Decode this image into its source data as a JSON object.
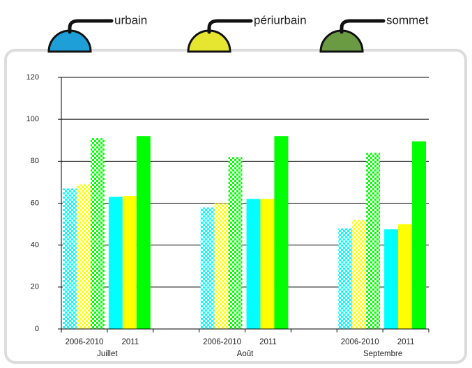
{
  "chart_data": {
    "type": "bar",
    "groups": [
      "Juillet",
      "Août",
      "Septembre"
    ],
    "categories": [
      "2006-2010",
      "2011",
      "2006-2010",
      "2011",
      "2006-2010",
      "2011"
    ],
    "category_pattern": [
      "checkered",
      "solid",
      "checkered",
      "solid",
      "checkered",
      "solid"
    ],
    "series": [
      {
        "name": "urbain",
        "color": "#00ffff",
        "legend_color": "#1e9fd8",
        "values": [
          67,
          63,
          58,
          62,
          48,
          47.5
        ]
      },
      {
        "name": "périurbain",
        "color": "#ffff00",
        "legend_color": "#e6e630",
        "values": [
          69,
          63.5,
          60,
          62,
          52,
          50
        ]
      },
      {
        "name": "sommet",
        "color": "#00ff00",
        "legend_color": "#6a9a42",
        "values": [
          91,
          92,
          82,
          92,
          84,
          89.5
        ]
      }
    ],
    "ylim": [
      0,
      120
    ],
    "yticks": [
      0,
      20,
      40,
      60,
      80,
      100,
      120
    ],
    "grid": true
  }
}
